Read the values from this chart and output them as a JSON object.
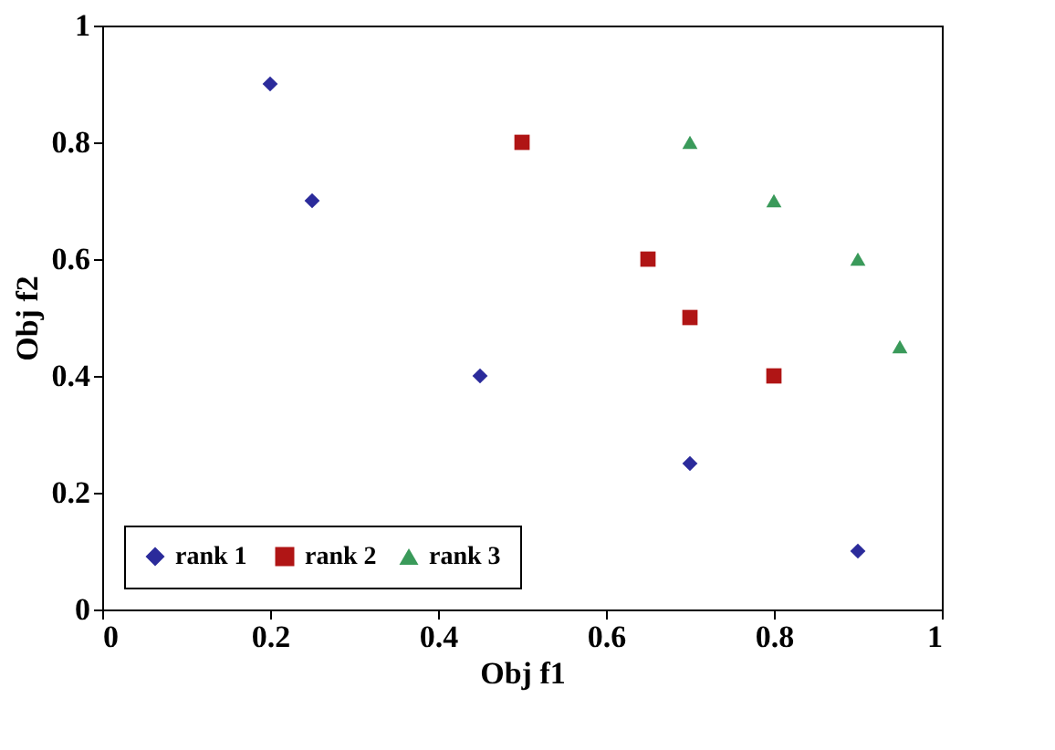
{
  "chart_data": {
    "type": "scatter",
    "xlabel": "Obj f1",
    "ylabel": "Obj f2",
    "xlim": [
      0,
      1
    ],
    "ylim": [
      0,
      1
    ],
    "xticks": [
      0,
      0.2,
      0.4,
      0.6,
      0.8,
      1
    ],
    "yticks": [
      0,
      0.2,
      0.4,
      0.6,
      0.8,
      1
    ],
    "grid": false,
    "legend": "bottom left",
    "series": [
      {
        "name": "rank  1",
        "color": "#2b2b9b",
        "marker": "diamond",
        "x": [
          0.2,
          0.25,
          0.45,
          0.7,
          0.9
        ],
        "values": [
          0.9,
          0.7,
          0.4,
          0.25,
          0.1
        ]
      },
      {
        "name": "rank 2",
        "color": "#b01515",
        "marker": "square",
        "x": [
          0.5,
          0.65,
          0.7,
          0.8
        ],
        "values": [
          0.8,
          0.6,
          0.5,
          0.4
        ]
      },
      {
        "name": "rank 3",
        "color": "#3a9a5a",
        "marker": "triangle",
        "x": [
          0.7,
          0.8,
          0.9,
          0.95
        ],
        "values": [
          0.8,
          0.7,
          0.6,
          0.45
        ]
      }
    ]
  }
}
